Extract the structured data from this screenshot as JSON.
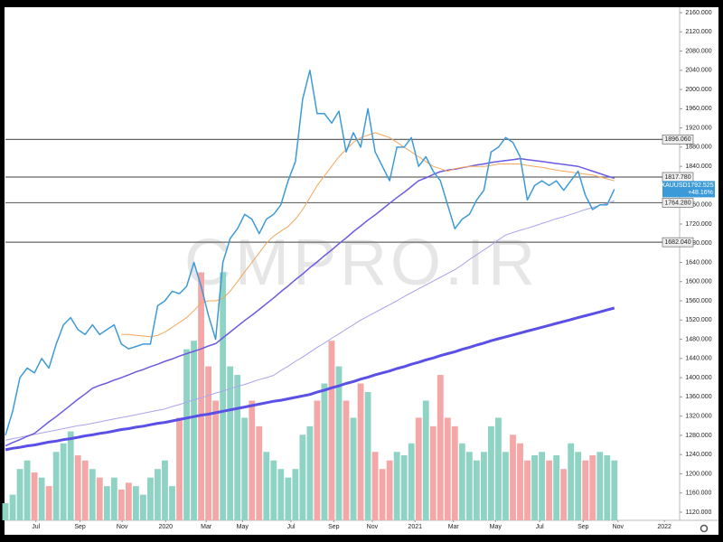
{
  "chart_data": {
    "type": "line",
    "watermark": "CMPRO.IR",
    "xlim": [
      0,
      93
    ],
    "xticks": [
      {
        "value": 4.2,
        "label": "Jul"
      },
      {
        "value": 10.3,
        "label": "Sep"
      },
      {
        "value": 16.1,
        "label": "Nov"
      },
      {
        "value": 22.1,
        "label": "2020"
      },
      {
        "value": 27.7,
        "label": "Mar"
      },
      {
        "value": 32.7,
        "label": "May"
      },
      {
        "value": 39.4,
        "label": "Jul"
      },
      {
        "value": 45.3,
        "label": "Sep"
      },
      {
        "value": 50.6,
        "label": "Nov"
      },
      {
        "value": 56.5,
        "label": "2021"
      },
      {
        "value": 61.8,
        "label": "Mar"
      },
      {
        "value": 67.6,
        "label": "May"
      },
      {
        "value": 73.7,
        "label": "Jul"
      },
      {
        "value": 79.7,
        "label": "Sep"
      },
      {
        "value": 84.5,
        "label": "Nov"
      },
      {
        "value": 90.9,
        "label": "2022"
      }
    ],
    "ylim": [
      1120,
      2160
    ],
    "yticks": [
      {
        "value": 2160,
        "label": "2160.000"
      },
      {
        "value": 2120,
        "label": "2120.000"
      },
      {
        "value": 2080,
        "label": "2080.000"
      },
      {
        "value": 2040,
        "label": "2040.000"
      },
      {
        "value": 2000,
        "label": "2000.000"
      },
      {
        "value": 1960,
        "label": "1960.000"
      },
      {
        "value": 1920,
        "label": "1920.000"
      },
      {
        "value": 1880,
        "label": "1880.000"
      },
      {
        "value": 1840,
        "label": "1840.000"
      },
      {
        "value": 1800,
        "label": "1800.000"
      },
      {
        "value": 1760,
        "label": "1760.000"
      },
      {
        "value": 1720,
        "label": "1720.000"
      },
      {
        "value": 1680,
        "label": "1680.000"
      },
      {
        "value": 1640,
        "label": "1640.000"
      },
      {
        "value": 1600,
        "label": "1600.000"
      },
      {
        "value": 1560,
        "label": "1560.000"
      },
      {
        "value": 1520,
        "label": "1520.000"
      },
      {
        "value": 1480,
        "label": "1480.000"
      },
      {
        "value": 1440,
        "label": "1440.000"
      },
      {
        "value": 1400,
        "label": "1400.000"
      },
      {
        "value": 1360,
        "label": "1360.000"
      },
      {
        "value": 1320,
        "label": "1320.000"
      },
      {
        "value": 1280,
        "label": "1280.000"
      },
      {
        "value": 1240,
        "label": "1240.000"
      },
      {
        "value": 1200,
        "label": "1200.000"
      },
      {
        "value": 1160,
        "label": "1160.000"
      },
      {
        "value": 1120,
        "label": "1120.000"
      }
    ],
    "levels": [
      {
        "value": 1896.06,
        "label": "1896.060"
      },
      {
        "value": 1817.78,
        "label": "1817.780"
      },
      {
        "value": 1764.28,
        "label": "1764.280"
      },
      {
        "value": 1682.04,
        "label": "1682.040"
      }
    ],
    "last_price": {
      "symbol": "XAUUSD",
      "value": 1792.525,
      "change": "+48.16%",
      "color": "#3d9ad8"
    },
    "volume": {
      "lim": [
        0,
        300
      ],
      "up_color": "#8fd3c4",
      "down_color": "#f4a7a7",
      "values": [
        10,
        15,
        30,
        35,
        28,
        25,
        20,
        40,
        45,
        52,
        38,
        35,
        30,
        25,
        20,
        25,
        18,
        22,
        20,
        15,
        25,
        30,
        35,
        20,
        60,
        100,
        105,
        145,
        90,
        70,
        145,
        90,
        85,
        60,
        70,
        55,
        40,
        35,
        30,
        25,
        30,
        50,
        55,
        70,
        80,
        105,
        90,
        70,
        60,
        80,
        75,
        40,
        30,
        35,
        40,
        38,
        45,
        60,
        70,
        55,
        85,
        60,
        55,
        45,
        40,
        35,
        40,
        55,
        60,
        40,
        50,
        45,
        35,
        38,
        40,
        35,
        38,
        30,
        45,
        40,
        35,
        38,
        40,
        38,
        35
      ]
    },
    "series": [
      {
        "color": "#5a4fe6",
        "width": 3,
        "values": [
          1250,
          1253,
          1255,
          1258,
          1260,
          1263,
          1266,
          1268,
          1271,
          1273,
          1276,
          1279,
          1281,
          1284,
          1286,
          1289,
          1292,
          1294,
          1297,
          1299,
          1302,
          1305,
          1307,
          1310,
          1313,
          1316,
          1319,
          1322,
          1324,
          1327,
          1330,
          1333,
          1336,
          1339,
          1342,
          1345,
          1348,
          1351,
          1353,
          1356,
          1359,
          1362,
          1365,
          1370,
          1374,
          1379,
          1383,
          1388,
          1392,
          1397,
          1401,
          1406,
          1410,
          1414,
          1419,
          1423,
          1428,
          1432,
          1437,
          1441,
          1446,
          1450,
          1454,
          1459,
          1463,
          1468,
          1472,
          1477,
          1481,
          1485,
          1489,
          1493,
          1497,
          1501,
          1505,
          1509,
          1513,
          1517,
          1521,
          1525,
          1529,
          1533,
          1537,
          1541,
          1545
        ]
      },
      {
        "color": "#aaa4ee",
        "width": 1,
        "values": [
          1270,
          1273,
          1276,
          1279,
          1282,
          1285,
          1288,
          1291,
          1294,
          1297,
          1300,
          1302,
          1305,
          1308,
          1311,
          1314,
          1317,
          1320,
          1323,
          1326,
          1329,
          1332,
          1335,
          1340,
          1344,
          1349,
          1354,
          1358,
          1363,
          1368,
          1372,
          1377,
          1382,
          1386,
          1391,
          1396,
          1400,
          1405,
          1415,
          1424,
          1434,
          1443,
          1453,
          1463,
          1472,
          1482,
          1491,
          1501,
          1510,
          1520,
          1528,
          1536,
          1544,
          1552,
          1560,
          1569,
          1577,
          1585,
          1593,
          1601,
          1609,
          1617,
          1625,
          1635,
          1646,
          1656,
          1666,
          1676,
          1687,
          1697,
          1702,
          1707,
          1711,
          1716,
          1721,
          1726,
          1731,
          1735,
          1740,
          1745,
          1750,
          1754,
          1759,
          1763,
          1768
        ]
      },
      {
        "color": "#6a5be0",
        "width": 1.5,
        "values": [
          1258,
          1265,
          1271,
          1278,
          1284,
          1296,
          1308,
          1319,
          1331,
          1343,
          1355,
          1366,
          1378,
          1384,
          1389,
          1395,
          1400,
          1406,
          1412,
          1417,
          1423,
          1428,
          1434,
          1439,
          1445,
          1450,
          1455,
          1460,
          1466,
          1471,
          1483,
          1495,
          1507,
          1519,
          1530,
          1542,
          1554,
          1566,
          1579,
          1591,
          1604,
          1616,
          1629,
          1641,
          1654,
          1666,
          1679,
          1691,
          1704,
          1716,
          1728,
          1739,
          1751,
          1763,
          1775,
          1786,
          1798,
          1810,
          1816,
          1823,
          1829,
          1832,
          1834,
          1837,
          1840,
          1843,
          1845,
          1848,
          1850,
          1852,
          1854,
          1856,
          1854,
          1852,
          1850,
          1848,
          1846,
          1844,
          1842,
          1840,
          1835,
          1830,
          1825,
          1820,
          1815
        ]
      },
      {
        "color": "#f5a65b",
        "width": 1,
        "values": [
          null,
          null,
          null,
          null,
          null,
          null,
          null,
          null,
          null,
          null,
          null,
          null,
          null,
          null,
          null,
          null,
          1490,
          1490,
          1488,
          1487,
          1485,
          1488,
          1495,
          1505,
          1515,
          1525,
          1540,
          1555,
          1560,
          1560,
          1565,
          1580,
          1600,
          1620,
          1640,
          1660,
          1680,
          1695,
          1705,
          1715,
          1730,
          1750,
          1775,
          1800,
          1820,
          1840,
          1860,
          1875,
          1890,
          1900,
          1905,
          1910,
          1905,
          1900,
          1890,
          1880,
          1870,
          1860,
          1850,
          1840,
          1835,
          1830,
          1835,
          1838,
          1840,
          1840,
          1840,
          1842,
          1845,
          1845,
          1845,
          1845,
          1842,
          1840,
          1838,
          1835,
          1832,
          1830,
          1828,
          1826,
          1824,
          1822,
          1818,
          1814,
          1810
        ]
      },
      {
        "color": "#3d9ad8",
        "width": 1.5,
        "values": [
          1280,
          1330,
          1400,
          1420,
          1410,
          1440,
          1420,
          1470,
          1510,
          1525,
          1500,
          1490,
          1510,
          1490,
          1500,
          1510,
          1470,
          1460,
          1465,
          1470,
          1470,
          1550,
          1560,
          1580,
          1575,
          1590,
          1640,
          1590,
          1530,
          1480,
          1640,
          1690,
          1710,
          1740,
          1730,
          1700,
          1730,
          1740,
          1760,
          1810,
          1850,
          1980,
          2040,
          1950,
          1950,
          1930,
          1955,
          1870,
          1910,
          1880,
          1960,
          1870,
          1840,
          1810,
          1880,
          1880,
          1900,
          1840,
          1860,
          1830,
          1810,
          1760,
          1710,
          1730,
          1740,
          1770,
          1790,
          1870,
          1880,
          1900,
          1890,
          1860,
          1770,
          1800,
          1810,
          1800,
          1810,
          1790,
          1810,
          1830,
          1780,
          1750,
          1760,
          1760,
          1792.525
        ]
      }
    ]
  }
}
